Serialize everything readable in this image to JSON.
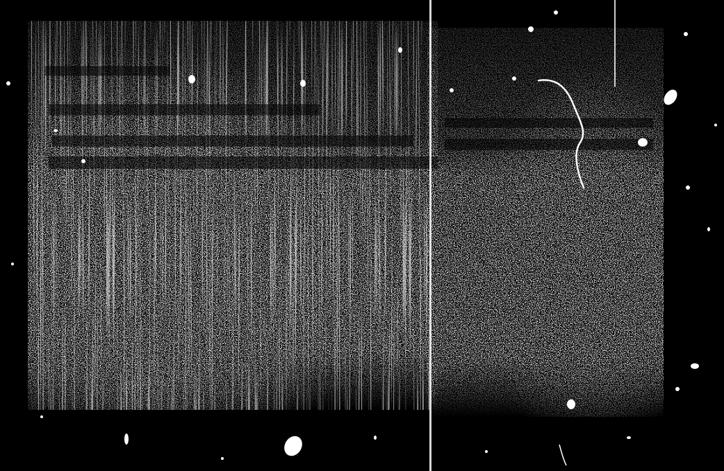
{
  "image": {
    "background_color": "#000000",
    "foreground_color": "#ffffff"
  }
}
